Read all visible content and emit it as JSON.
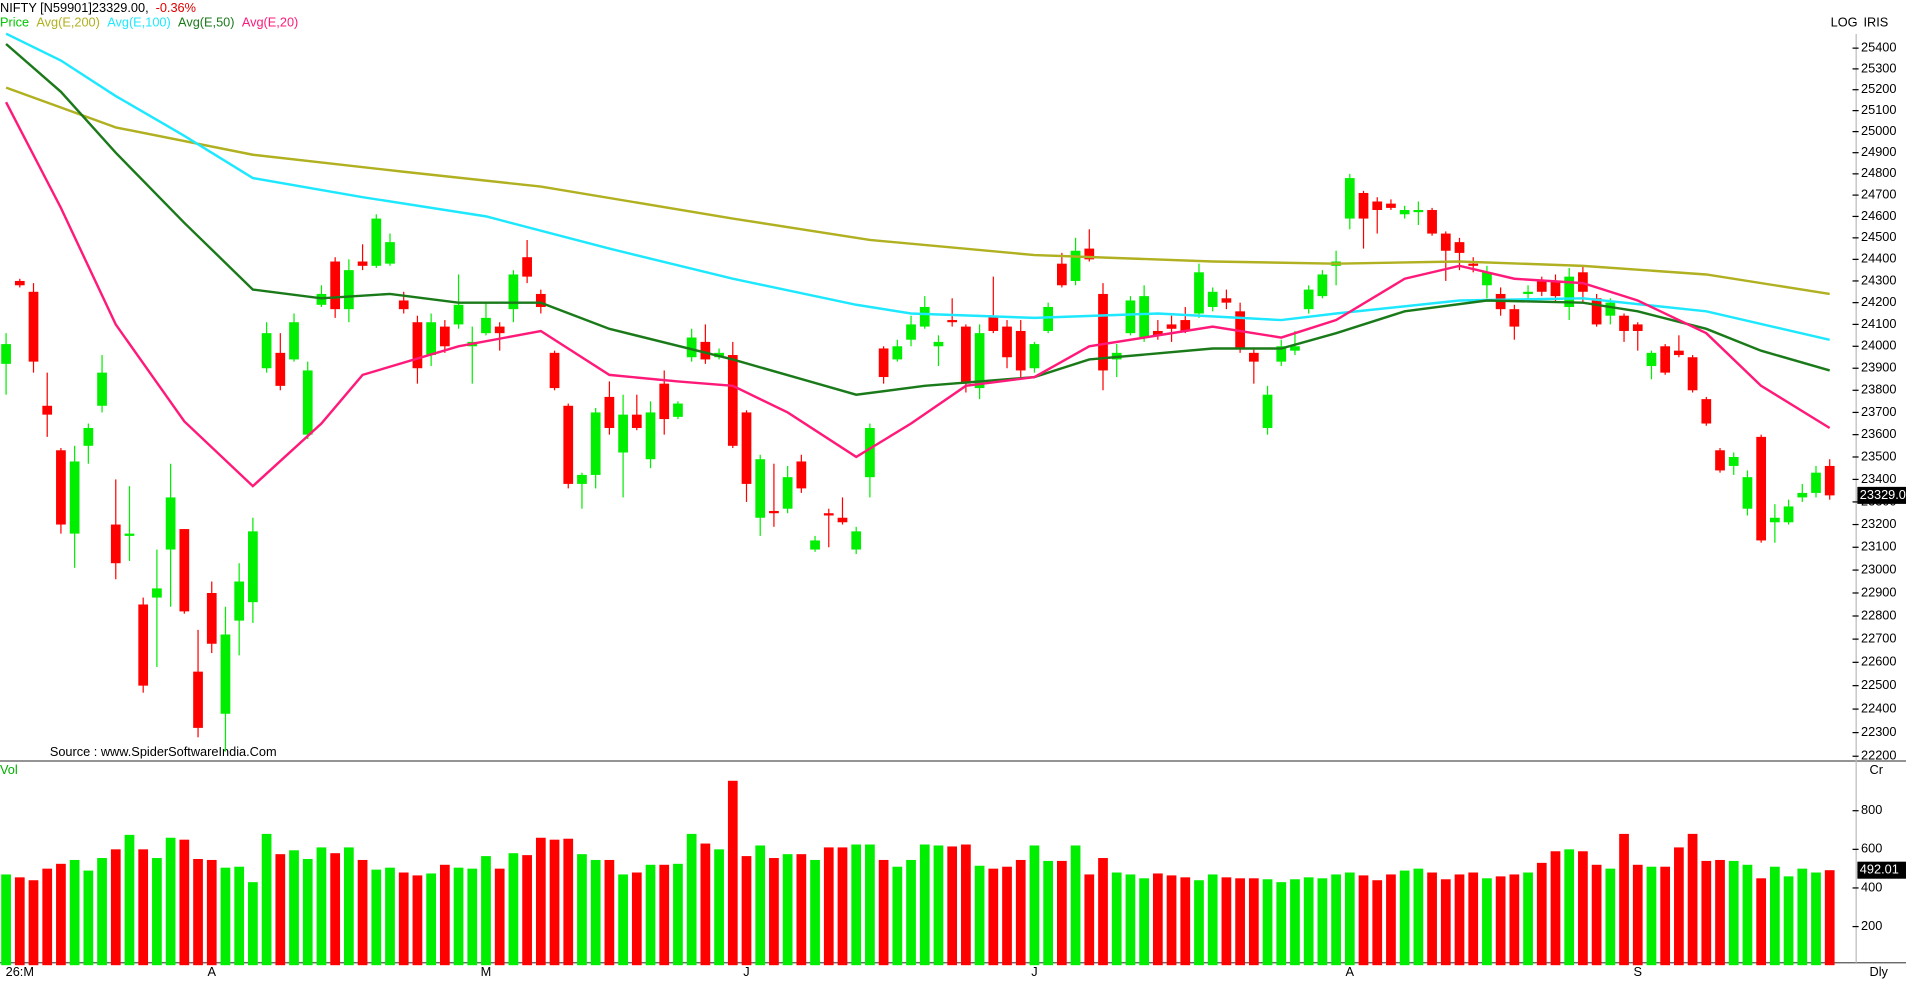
{
  "chart_data": {
    "type": "candlestick",
    "title": "NIFTY [N59901]23329.00,",
    "change": "-0.36%",
    "scale_mode": "LOG",
    "brand": "IRIS",
    "source": "Source : www.SpiderSoftwareIndia.Com",
    "frequency": "Dly",
    "log_scale": true,
    "up_color": "#00ee00",
    "down_color": "#ff0000",
    "ylim": [
      22180,
      25480
    ],
    "yticks": [
      22200,
      22300,
      22400,
      22500,
      22600,
      22700,
      22800,
      22900,
      23000,
      23100,
      23200,
      23300,
      23400,
      23500,
      23600,
      23700,
      23800,
      23900,
      24000,
      24100,
      24200,
      24300,
      24400,
      24500,
      24600,
      24700,
      24800,
      24900,
      25000,
      25100,
      25200,
      25300,
      25400
    ],
    "price_tag": {
      "value": 23329,
      "label": "23329.0"
    },
    "x_labels": [
      {
        "index": 1,
        "label": "26:M"
      },
      {
        "index": 15,
        "label": "A"
      },
      {
        "index": 35,
        "label": "M"
      },
      {
        "index": 54,
        "label": "J"
      },
      {
        "index": 75,
        "label": "J"
      },
      {
        "index": 98,
        "label": "A"
      },
      {
        "index": 119,
        "label": "S"
      }
    ],
    "candles": {
      "name": "Price",
      "color": "#00c800",
      "open": [
        23920,
        24300,
        24250,
        23730,
        23530,
        23160,
        23550,
        23730,
        23200,
        23150,
        22850,
        22880,
        23090,
        23180,
        22560,
        22900,
        22380,
        22780,
        22860,
        23900,
        23970,
        23940,
        23600,
        24190,
        24390,
        24170,
        24390,
        24370,
        24380,
        24210,
        24110,
        23960,
        24090,
        24100,
        24000,
        24060,
        24090,
        24170,
        24410,
        24240,
        23970,
        23730,
        23380,
        23420,
        23770,
        23520,
        23690,
        23490,
        23830,
        23680,
        23950,
        24020,
        23950,
        23960,
        23700,
        23230,
        23260,
        23270,
        23480,
        23090,
        23250,
        23230,
        23090,
        23410,
        23990,
        23940,
        24030,
        24090,
        24000,
        24120,
        24090,
        23810,
        24140,
        24090,
        24070,
        23900,
        24070,
        24380,
        24300,
        24450,
        24240,
        23940,
        24060,
        24040,
        24070,
        24100,
        24120,
        24150,
        24180,
        24220,
        24160,
        23970,
        23630,
        23930,
        23980,
        24170,
        24230,
        24370,
        24590,
        24710,
        24670,
        24660,
        24610,
        24620,
        24630,
        24520,
        24480,
        24380,
        24280,
        24240,
        24170,
        24240,
        24300,
        24300,
        24180,
        24340,
        24220,
        24140,
        24140,
        24100,
        23910,
        24000,
        23980,
        23950,
        23760,
        23530,
        23460,
        23270,
        23590,
        23210,
        23210,
        23320,
        23340,
        23460
      ],
      "high": [
        24060,
        24310,
        24290,
        23880,
        23540,
        23550,
        23650,
        23960,
        23400,
        23370,
        22880,
        23090,
        23470,
        23180,
        22740,
        22950,
        22840,
        23030,
        23230,
        24110,
        24060,
        24150,
        23930,
        24280,
        24410,
        24400,
        24470,
        24610,
        24520,
        24250,
        24140,
        24150,
        24120,
        24330,
        24090,
        24200,
        24110,
        24350,
        24490,
        24260,
        23980,
        23740,
        23430,
        23720,
        23840,
        23780,
        23780,
        23750,
        23890,
        23750,
        24080,
        24100,
        23990,
        24020,
        23710,
        23510,
        23470,
        23460,
        23510,
        23150,
        23270,
        23320,
        23190,
        23650,
        24000,
        24030,
        24140,
        24230,
        24050,
        24220,
        24100,
        24100,
        24320,
        24120,
        24120,
        24020,
        24200,
        24430,
        24500,
        24540,
        24290,
        24010,
        24230,
        24280,
        24120,
        24140,
        24180,
        24380,
        24270,
        24260,
        24200,
        23990,
        23820,
        24030,
        24070,
        24280,
        24350,
        24440,
        24800,
        24720,
        24690,
        24680,
        24650,
        24670,
        24640,
        24530,
        24500,
        24410,
        24370,
        24270,
        24190,
        24280,
        24320,
        24330,
        24360,
        24370,
        24240,
        24220,
        24150,
        24110,
        23980,
        24010,
        24050,
        23960,
        23770,
        23540,
        23520,
        23440,
        23600,
        23290,
        23310,
        23380,
        23460,
        23490
      ],
      "low": [
        23780,
        24270,
        23880,
        23590,
        23160,
        23010,
        23470,
        23700,
        22960,
        23040,
        22470,
        22580,
        22840,
        22810,
        22280,
        22640,
        22220,
        22630,
        22770,
        23880,
        23800,
        23930,
        23580,
        24180,
        24130,
        24110,
        24350,
        24360,
        24370,
        24150,
        23830,
        23910,
        23970,
        24080,
        23830,
        24050,
        23980,
        24110,
        24290,
        24150,
        23800,
        23360,
        23270,
        23360,
        23600,
        23320,
        23620,
        23450,
        23600,
        23670,
        23930,
        23920,
        23940,
        23540,
        23300,
        23150,
        23190,
        23250,
        23340,
        23080,
        23100,
        23200,
        23070,
        23320,
        23830,
        23930,
        24000,
        24080,
        23910,
        24090,
        23790,
        23760,
        24060,
        23900,
        23860,
        23880,
        24060,
        24270,
        24280,
        24390,
        23800,
        23860,
        24050,
        24020,
        24030,
        24020,
        24060,
        24130,
        24160,
        24170,
        23970,
        23830,
        23600,
        23910,
        23960,
        24150,
        24220,
        24280,
        24540,
        24450,
        24520,
        24630,
        24590,
        24560,
        24510,
        24300,
        24350,
        24340,
        24220,
        24140,
        24030,
        24200,
        24230,
        24200,
        24120,
        24200,
        24090,
        24100,
        24020,
        23980,
        23850,
        23870,
        23950,
        23790,
        23640,
        23430,
        23420,
        23240,
        23120,
        23120,
        23200,
        23300,
        23320,
        23310
      ],
      "close": [
        24010,
        24280,
        23930,
        23690,
        23200,
        23480,
        23630,
        23880,
        23030,
        23160,
        22500,
        22920,
        23320,
        22820,
        22320,
        22680,
        22720,
        22950,
        23170,
        24060,
        23820,
        24110,
        23890,
        24240,
        24170,
        24350,
        24370,
        24590,
        24480,
        24170,
        23900,
        24110,
        24000,
        24190,
        24020,
        24130,
        24060,
        24330,
        24320,
        24180,
        23810,
        23380,
        23420,
        23700,
        23630,
        23690,
        23630,
        23700,
        23670,
        23740,
        24040,
        23940,
        23970,
        23550,
        23380,
        23490,
        23250,
        23410,
        23360,
        23130,
        23240,
        23210,
        23170,
        23630,
        23860,
        24000,
        24100,
        24180,
        24020,
        24110,
        23830,
        24060,
        24070,
        23950,
        23890,
        24010,
        24180,
        24280,
        24440,
        24400,
        23890,
        23970,
        24210,
        24230,
        24050,
        24080,
        24070,
        24340,
        24250,
        24200,
        23990,
        23930,
        23780,
        24000,
        24000,
        24260,
        24330,
        24390,
        24780,
        24590,
        24630,
        24640,
        24630,
        24630,
        24520,
        24440,
        24430,
        24370,
        24340,
        24170,
        24090,
        24250,
        24250,
        24230,
        24320,
        24250,
        24100,
        24200,
        24070,
        24070,
        23970,
        23880,
        23960,
        23800,
        23650,
        23440,
        23500,
        23410,
        23130,
        23230,
        23280,
        23340,
        23430,
        23329
      ]
    },
    "averages": [
      {
        "name": "Avg(E,200)",
        "color": "#b0b020",
        "x": [
          0,
          8,
          18,
          29,
          39,
          53,
          63,
          75,
          88,
          97,
          106,
          115,
          124,
          133
        ],
        "values": [
          25210,
          25020,
          24890,
          24810,
          24740,
          24590,
          24490,
          24420,
          24390,
          24380,
          24390,
          24370,
          24330,
          24240
        ]
      },
      {
        "name": "Avg(E,100)",
        "color": "#1ee8ff",
        "x": [
          0,
          4,
          8,
          13,
          18,
          26,
          35,
          44,
          53,
          62,
          66,
          75,
          84,
          93,
          97,
          106,
          115,
          124,
          133
        ],
        "values": [
          25470,
          25340,
          25170,
          24980,
          24780,
          24690,
          24600,
          24450,
          24310,
          24190,
          24150,
          24130,
          24150,
          24120,
          24150,
          24210,
          24220,
          24160,
          24030
        ]
      },
      {
        "name": "Avg(E,50)",
        "color": "#1a7a1a",
        "x": [
          0,
          4,
          8,
          13,
          18,
          23,
          28,
          33,
          39,
          44,
          53,
          62,
          67,
          75,
          79,
          88,
          93,
          97,
          102,
          108,
          115,
          119,
          124,
          128,
          133
        ],
        "values": [
          25420,
          25190,
          24900,
          24570,
          24260,
          24220,
          24240,
          24200,
          24200,
          24080,
          23940,
          23780,
          23820,
          23860,
          23940,
          23990,
          23990,
          24060,
          24160,
          24210,
          24200,
          24160,
          24080,
          23980,
          23890
        ]
      },
      {
        "name": "Avg(E,20)",
        "color": "#ff1a7a",
        "x": [
          0,
          4,
          8,
          13,
          18,
          23,
          26,
          33,
          39,
          44,
          49,
          53,
          57,
          62,
          66,
          70,
          75,
          79,
          84,
          88,
          93,
          97,
          102,
          106,
          110,
          115,
          119,
          124,
          128,
          133
        ],
        "values": [
          25140,
          24640,
          24100,
          23660,
          23370,
          23650,
          23870,
          24000,
          24070,
          23870,
          23840,
          23820,
          23700,
          23500,
          23650,
          23820,
          23860,
          24000,
          24050,
          24090,
          24040,
          24120,
          24310,
          24370,
          24310,
          24290,
          24210,
          24060,
          23820,
          23630
        ]
      }
    ],
    "volume": {
      "title": "Vol",
      "unit": "Cr",
      "ylim": [
        0,
        1045
      ],
      "yticks": [
        200,
        400,
        600,
        800
      ],
      "values": [
        470,
        455,
        440,
        500,
        525,
        545,
        490,
        555,
        600,
        675,
        600,
        555,
        660,
        650,
        550,
        545,
        505,
        510,
        430,
        680,
        575,
        595,
        550,
        610,
        580,
        610,
        545,
        495,
        505,
        480,
        465,
        475,
        520,
        505,
        500,
        565,
        500,
        580,
        570,
        660,
        650,
        655,
        575,
        545,
        545,
        470,
        480,
        520,
        520,
        525,
        680,
        630,
        600,
        955,
        565,
        620,
        555,
        575,
        575,
        545,
        610,
        610,
        625,
        625,
        545,
        510,
        545,
        625,
        620,
        615,
        625,
        515,
        500,
        510,
        545,
        620,
        540,
        540,
        620,
        470,
        555,
        480,
        470,
        450,
        475,
        465,
        455,
        440,
        470,
        455,
        450,
        450,
        445,
        430,
        445,
        455,
        450,
        470,
        480,
        465,
        440,
        470,
        490,
        500,
        480,
        445,
        470,
        480,
        450,
        460,
        470,
        480,
        530,
        590,
        600,
        590,
        520,
        500,
        680,
        520,
        510,
        510,
        610,
        680,
        540,
        545,
        540,
        520,
        450,
        510,
        460,
        500,
        480,
        492.01
      ]
    }
  }
}
